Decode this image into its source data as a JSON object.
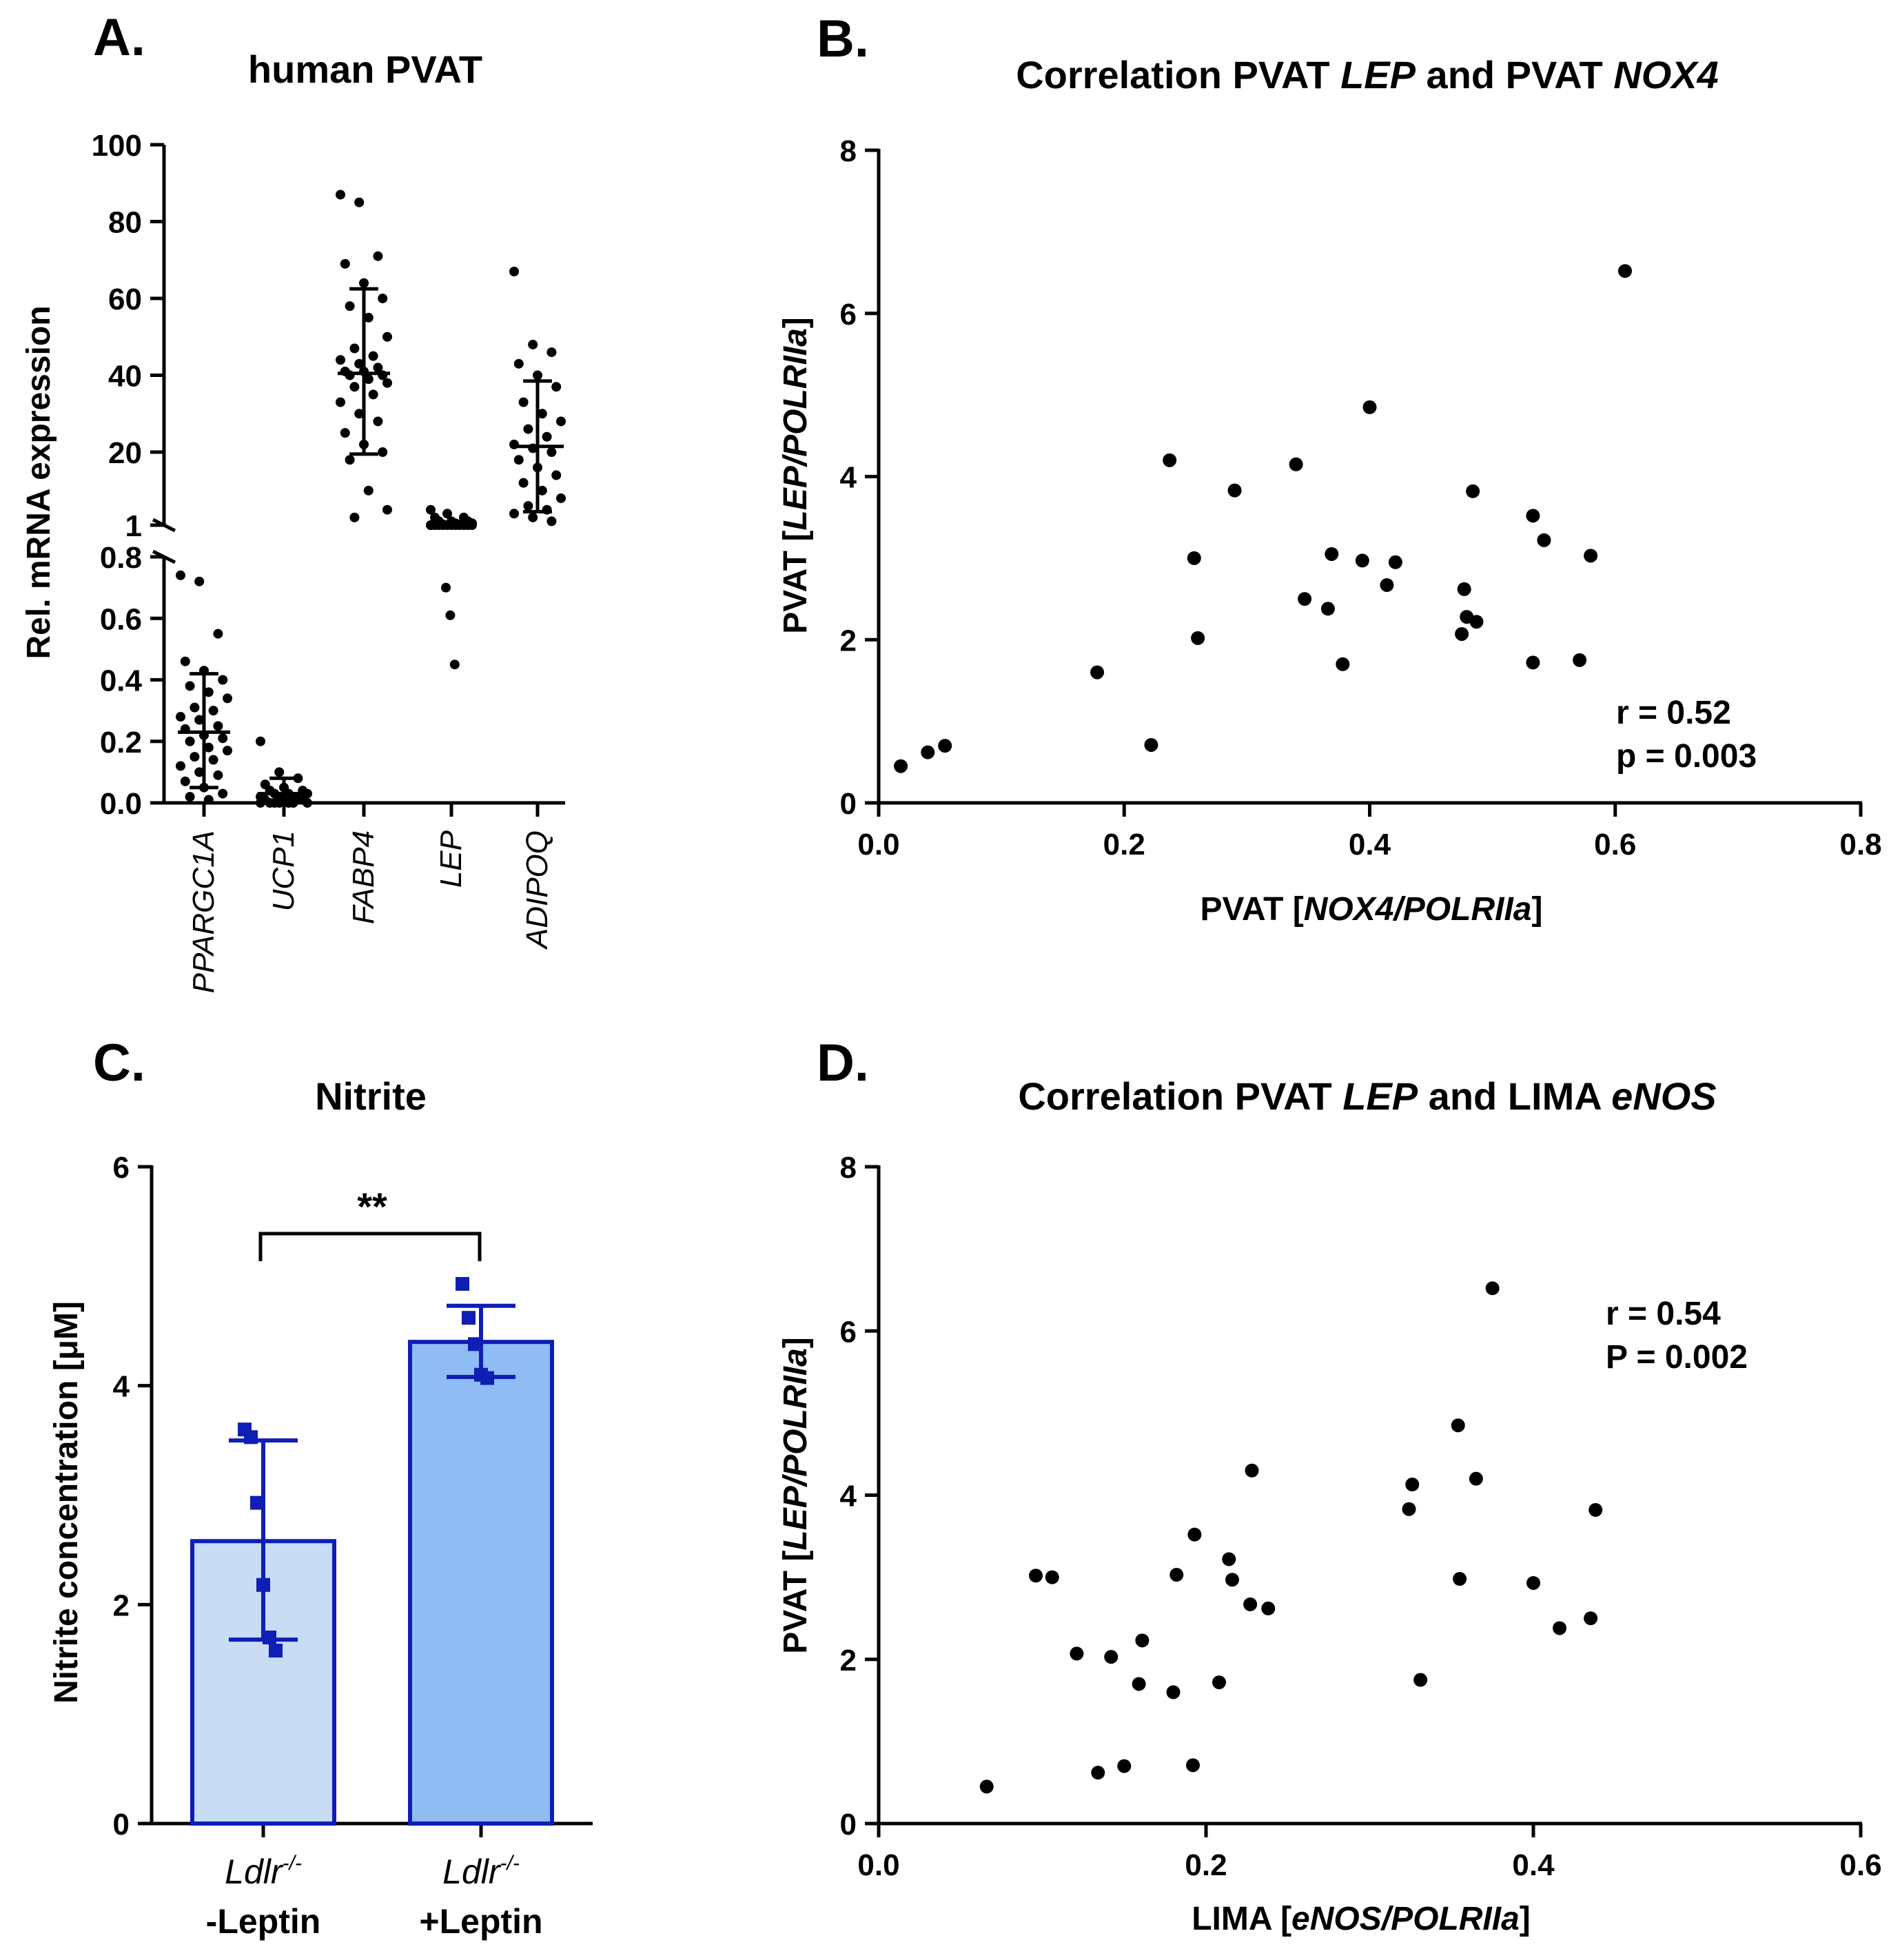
{
  "chart_data": [
    {
      "panel": "A.",
      "type": "scatter",
      "title": "human PVAT",
      "ylabel": "Rel. mRNA expression",
      "categories": [
        "PPARGC1A",
        "UCP1",
        "FABP4",
        "LEP",
        "ADIPOQ"
      ],
      "axis_break": {
        "lower_segment": {
          "range": [
            0,
            0.8
          ],
          "ticks": [
            "0.0",
            "0.2",
            "0.4",
            "0.6",
            "0.8"
          ]
        },
        "upper_segment": {
          "range": [
            1,
            100
          ],
          "ticks": [
            "1",
            "20",
            "40",
            "60",
            "80",
            "100"
          ]
        }
      },
      "series": [
        {
          "name": "PPARGC1A",
          "segment": "lower",
          "mean": 0.23,
          "sd_low": 0.05,
          "sd_high": 0.42,
          "points": [
            0.74,
            0.72,
            0.55,
            0.46,
            0.43,
            0.4,
            0.38,
            0.36,
            0.34,
            0.31,
            0.3,
            0.28,
            0.27,
            0.25,
            0.24,
            0.22,
            0.21,
            0.2,
            0.18,
            0.17,
            0.15,
            0.14,
            0.12,
            0.1,
            0.09,
            0.07,
            0.05,
            0.03,
            0.02,
            0.01
          ]
        },
        {
          "name": "UCP1",
          "segment": "lower",
          "mean": 0.03,
          "sd_low": 0.0,
          "sd_high": 0.08,
          "points": [
            0.2,
            0.1,
            0.08,
            0.06,
            0.05,
            0.04,
            0.04,
            0.03,
            0.03,
            0.03,
            0.02,
            0.02,
            0.02,
            0.01,
            0.01,
            0.01,
            0.01,
            0.0,
            0.0,
            0.0,
            0.0,
            0.0,
            0.0,
            0.0
          ]
        },
        {
          "name": "FABP4",
          "segment": "upper",
          "mean": 40.5,
          "sd_low": 19.5,
          "sd_high": 62.5,
          "points": [
            87,
            85,
            71,
            69,
            64,
            60,
            58,
            55,
            50,
            47,
            45,
            44,
            43,
            42,
            41,
            41,
            40,
            40,
            39,
            38,
            37,
            35,
            33,
            30,
            28,
            25,
            22,
            20,
            18,
            10,
            5,
            3
          ]
        },
        {
          "name": "LEP",
          "segment": "mixed",
          "mean": 1.0,
          "sd_low": 0.8,
          "sd_high": 1.2,
          "points_upper": [
            5,
            4,
            3,
            3,
            2,
            2,
            2,
            1.5,
            1.5,
            1.2,
            1.1,
            1,
            1,
            1,
            1,
            1,
            1,
            1,
            1,
            1,
            1,
            1,
            1
          ],
          "points_lower": [
            0.7,
            0.61,
            0.45
          ]
        },
        {
          "name": "ADIPOQ",
          "segment": "upper",
          "mean": 21.5,
          "sd_low": 4.5,
          "sd_high": 38.5,
          "points": [
            67,
            48,
            46,
            43,
            40,
            37,
            33,
            30,
            28,
            26,
            24,
            22,
            21,
            20,
            18,
            16,
            14,
            12,
            10,
            8,
            6,
            5,
            4,
            3,
            2
          ]
        }
      ]
    },
    {
      "panel": "B.",
      "type": "scatter",
      "title_parts": [
        "Correlation PVAT ",
        "LEP",
        " and PVAT ",
        "NOX4"
      ],
      "xlabel_parts": [
        "PVAT [",
        "NOX4/POLRIIa",
        "]"
      ],
      "ylabel_parts": [
        "PVAT [",
        "LEP/POLRIIa",
        "]"
      ],
      "xlim": [
        0,
        0.8
      ],
      "ylim": [
        0,
        8
      ],
      "xticks": [
        "0.0",
        "0.2",
        "0.4",
        "0.6",
        "0.8"
      ],
      "yticks": [
        "0",
        "2",
        "4",
        "6",
        "8"
      ],
      "annotation": [
        "r = 0.52",
        "p = 0.003"
      ],
      "points": [
        [
          0.018,
          0.45
        ],
        [
          0.04,
          0.62
        ],
        [
          0.054,
          0.7
        ],
        [
          0.178,
          1.6
        ],
        [
          0.222,
          0.71
        ],
        [
          0.237,
          4.2
        ],
        [
          0.257,
          3.0
        ],
        [
          0.26,
          2.02
        ],
        [
          0.29,
          3.83
        ],
        [
          0.34,
          4.15
        ],
        [
          0.347,
          2.5
        ],
        [
          0.366,
          2.38
        ],
        [
          0.369,
          3.05
        ],
        [
          0.378,
          1.7
        ],
        [
          0.394,
          2.97
        ],
        [
          0.4,
          4.85
        ],
        [
          0.414,
          2.67
        ],
        [
          0.421,
          2.95
        ],
        [
          0.475,
          2.07
        ],
        [
          0.477,
          2.62
        ],
        [
          0.479,
          2.28
        ],
        [
          0.484,
          3.82
        ],
        [
          0.487,
          2.22
        ],
        [
          0.533,
          1.72
        ],
        [
          0.533,
          3.52
        ],
        [
          0.542,
          3.22
        ],
        [
          0.571,
          1.75
        ],
        [
          0.58,
          3.03
        ],
        [
          0.608,
          6.52
        ]
      ]
    },
    {
      "panel": "C.",
      "type": "bar",
      "title": "Nitrite",
      "ylabel": "Nitrite concentration [μM]",
      "ylim": [
        0,
        6
      ],
      "yticks": [
        "0",
        "2",
        "4",
        "6"
      ],
      "categories": [
        {
          "genotype": "Ldlr",
          "superscript": "-/-",
          "treatment": "-Leptin"
        },
        {
          "genotype": "Ldlr",
          "superscript": "-/-",
          "treatment": "+Leptin"
        }
      ],
      "series": [
        {
          "name": "-Leptin",
          "value": 2.58,
          "sd_low": 1.68,
          "sd_high": 3.5,
          "color": "#c8dcf5",
          "points": [
            3.6,
            3.53,
            2.93,
            2.18,
            1.7,
            1.58
          ]
        },
        {
          "name": "+Leptin",
          "value": 4.4,
          "sd_low": 4.08,
          "sd_high": 4.73,
          "color": "#8fbcf3",
          "points": [
            4.93,
            4.62,
            4.38,
            4.1,
            4.07
          ]
        }
      ],
      "edge_color": "#0f1eb4",
      "significance": "**"
    },
    {
      "panel": "D.",
      "type": "scatter",
      "title_parts": [
        "Correlation PVAT ",
        "LEP",
        " and LIMA ",
        "eNOS"
      ],
      "xlabel_parts": [
        "LIMA [",
        "eNOS/POLRIIa",
        "]"
      ],
      "ylabel_parts": [
        "PVAT [",
        "LEP/POLRIIa",
        "]"
      ],
      "xlim": [
        0,
        0.6
      ],
      "ylim": [
        0,
        8
      ],
      "xticks": [
        "0.0",
        "0.2",
        "0.4",
        "0.6"
      ],
      "yticks": [
        "0",
        "2",
        "4",
        "6",
        "8"
      ],
      "annotation": [
        "r = 0.54",
        "P = 0.002"
      ],
      "points": [
        [
          0.066,
          0.45
        ],
        [
          0.096,
          3.02
        ],
        [
          0.106,
          3.0
        ],
        [
          0.121,
          2.07
        ],
        [
          0.134,
          0.62
        ],
        [
          0.142,
          2.03
        ],
        [
          0.15,
          0.7
        ],
        [
          0.159,
          1.7
        ],
        [
          0.161,
          2.23
        ],
        [
          0.18,
          1.6
        ],
        [
          0.182,
          3.03
        ],
        [
          0.192,
          0.71
        ],
        [
          0.193,
          3.52
        ],
        [
          0.208,
          1.72
        ],
        [
          0.214,
          3.22
        ],
        [
          0.216,
          2.97
        ],
        [
          0.227,
          2.67
        ],
        [
          0.228,
          4.3
        ],
        [
          0.238,
          2.62
        ],
        [
          0.324,
          3.83
        ],
        [
          0.326,
          4.13
        ],
        [
          0.331,
          1.75
        ],
        [
          0.354,
          4.85
        ],
        [
          0.355,
          2.98
        ],
        [
          0.365,
          4.2
        ],
        [
          0.375,
          6.52
        ],
        [
          0.4,
          2.93
        ],
        [
          0.416,
          2.38
        ],
        [
          0.435,
          2.5
        ],
        [
          0.438,
          3.82
        ]
      ]
    }
  ]
}
